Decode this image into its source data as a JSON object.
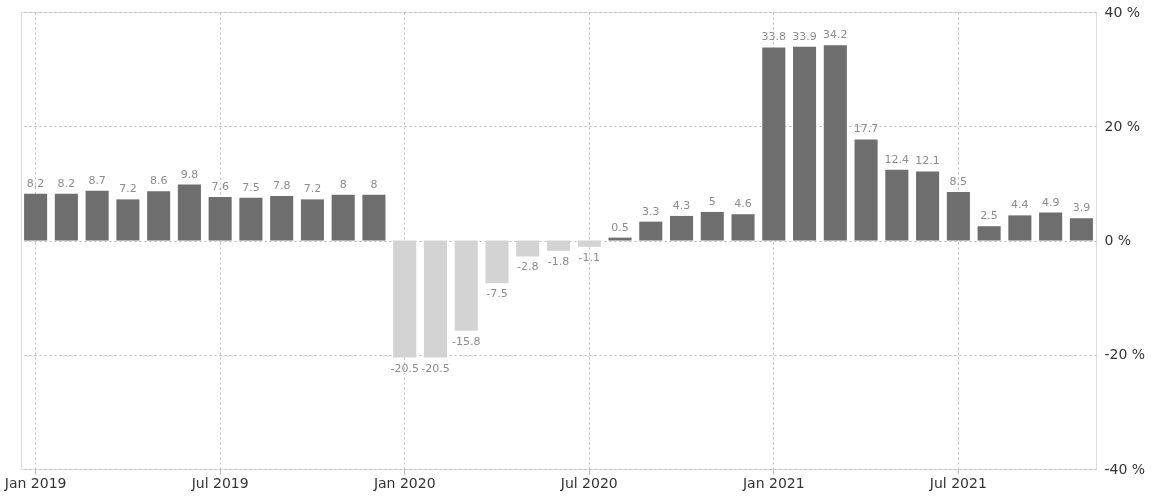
{
  "chart_data": {
    "type": "bar",
    "categories": [
      "Jan 2019",
      null,
      null,
      null,
      null,
      null,
      "Jul 2019",
      null,
      null,
      null,
      null,
      null,
      "Jan 2020",
      null,
      null,
      null,
      null,
      null,
      "Jul 2020",
      null,
      null,
      null,
      null,
      null,
      "Jan 2021",
      null,
      null,
      null,
      null,
      null,
      "Jul 2021",
      null,
      null,
      null,
      null
    ],
    "values": [
      8.2,
      8.2,
      8.7,
      7.2,
      8.6,
      9.8,
      7.6,
      7.5,
      7.8,
      7.2,
      8,
      8,
      -20.5,
      -20.5,
      -15.8,
      -7.5,
      -2.8,
      -1.8,
      -1.1,
      0.5,
      3.3,
      4.3,
      5,
      4.6,
      33.8,
      33.9,
      34.2,
      17.7,
      12.4,
      12.1,
      8.5,
      2.5,
      4.4,
      4.9,
      3.9
    ],
    "colors": [
      "#6e6e6e",
      "#6e6e6e",
      "#6e6e6e",
      "#6e6e6e",
      "#6e6e6e",
      "#6e6e6e",
      "#6e6e6e",
      "#6e6e6e",
      "#6e6e6e",
      "#6e6e6e",
      "#6e6e6e",
      "#6e6e6e",
      "#d3d3d3",
      "#d3d3d3",
      "#d3d3d3",
      "#d3d3d3",
      "#d3d3d3",
      "#d3d3d3",
      "#d3d3d3",
      "#6e6e6e",
      "#6e6e6e",
      "#6e6e6e",
      "#6e6e6e",
      "#6e6e6e",
      "#6e6e6e",
      "#6e6e6e",
      "#6e6e6e",
      "#6e6e6e",
      "#6e6e6e",
      "#6e6e6e",
      "#6e6e6e",
      "#6e6e6e",
      "#6e6e6e",
      "#6e6e6e",
      "#6e6e6e"
    ],
    "ylim": [
      -40,
      40
    ],
    "yticks": [
      {
        "value": -40,
        "label": "-40 %"
      },
      {
        "value": -20,
        "label": "-20 %"
      },
      {
        "value": 0,
        "label": "0 %"
      },
      {
        "value": 20,
        "label": "20 %"
      },
      {
        "value": 40,
        "label": "40 %"
      }
    ],
    "grid": true,
    "data_labels": true
  }
}
